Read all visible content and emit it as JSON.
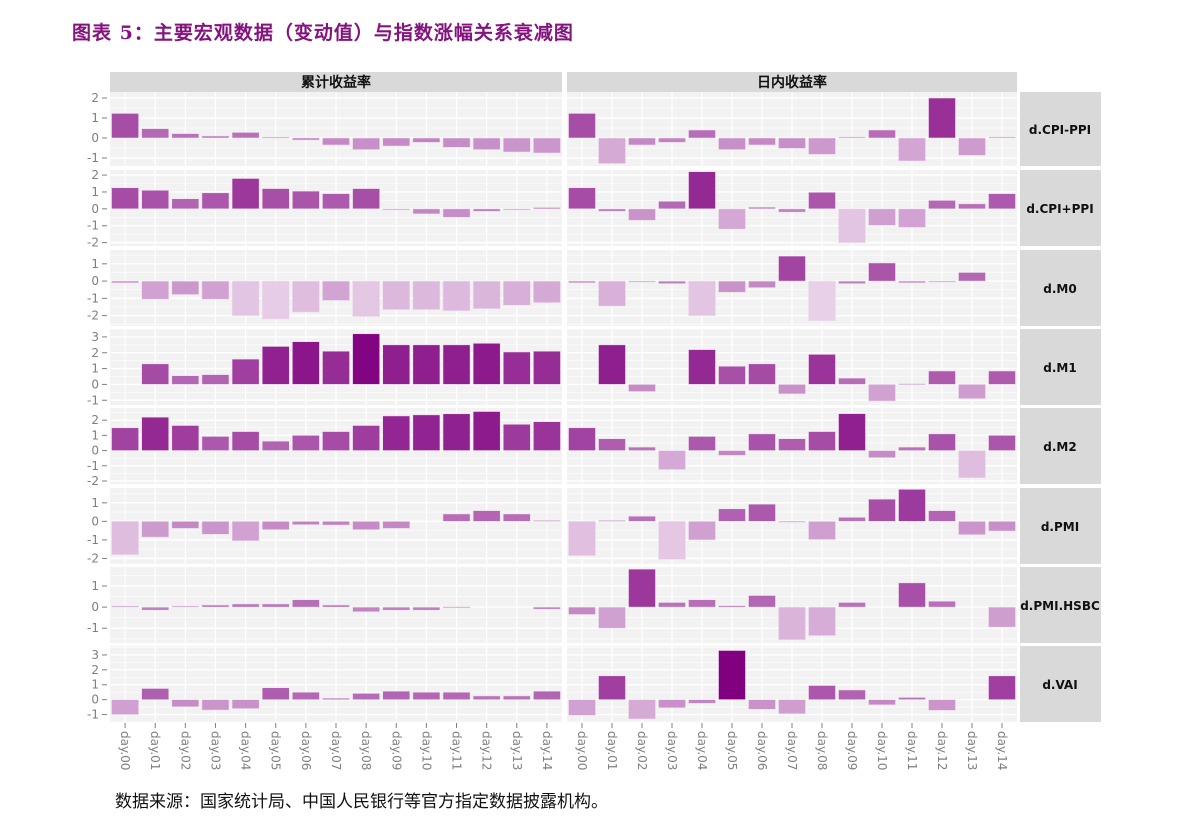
{
  "title": "图表 5：主要宏观数据（变动值）与指数涨幅关系衰减图",
  "source": "数据来源：国家统计局、中国人民银行等官方指定数据披露机构。",
  "colors": {
    "low": "#e8d0e8",
    "high": "#800080",
    "strip": "#d9d9d9",
    "panel": "#f2f2f2",
    "title": "#84127f"
  },
  "chart_data": {
    "type": "bar",
    "title": "主要宏观数据（变动值）与指数涨幅关系衰减图",
    "xlabel": "",
    "ylabel": "",
    "grid": true,
    "columns": [
      "累计收益率",
      "日内收益率"
    ],
    "categories": [
      "day.00",
      "day.01",
      "day.02",
      "day.03",
      "day.04",
      "day.05",
      "day.06",
      "day.07",
      "day.08",
      "day.09",
      "day.10",
      "day.11",
      "day.12",
      "day.13",
      "day.14"
    ],
    "color_range": [
      -2.3,
      3.3
    ],
    "rows": [
      {
        "name": "d.CPI-PPI",
        "ylim": [
          -1.4,
          2.3
        ],
        "ticks": [
          -1,
          0,
          1,
          2
        ],
        "series": [
          [
            1.23,
            0.47,
            0.22,
            0.1,
            0.28,
            0.04,
            -0.1,
            -0.35,
            -0.58,
            -0.4,
            -0.22,
            -0.47,
            -0.58,
            -0.7,
            -0.75
          ],
          [
            1.23,
            -1.28,
            -0.35,
            -0.22,
            0.4,
            -0.58,
            -0.35,
            -0.52,
            -0.82,
            0.05,
            0.4,
            -1.15,
            2.0,
            -0.87,
            0.05
          ]
        ]
      },
      {
        "name": "d.CPI+PPI",
        "ylim": [
          -2.2,
          2.3
        ],
        "ticks": [
          -2,
          -1,
          0,
          1,
          2
        ],
        "series": [
          [
            1.25,
            1.1,
            0.6,
            0.95,
            1.8,
            1.2,
            1.05,
            0.9,
            1.2,
            -0.05,
            -0.3,
            -0.5,
            -0.15,
            -0.05,
            0.08
          ],
          [
            1.25,
            -0.15,
            -0.68,
            0.45,
            2.2,
            -1.2,
            0.1,
            -0.2,
            0.98,
            -2.0,
            -0.98,
            -1.1,
            0.5,
            0.3,
            0.9
          ]
        ]
      },
      {
        "name": "d.M0",
        "ylim": [
          -2.6,
          1.8
        ],
        "ticks": [
          -2,
          -1,
          0,
          1
        ],
        "series": [
          [
            -0.1,
            -1.05,
            -0.78,
            -1.05,
            -2.0,
            -2.2,
            -1.8,
            -1.12,
            -2.05,
            -1.65,
            -1.65,
            -1.72,
            -1.6,
            -1.4,
            -1.25
          ],
          [
            -0.1,
            -1.45,
            -0.05,
            -0.15,
            -2.0,
            -0.65,
            -0.38,
            1.45,
            -2.3,
            -0.15,
            1.05,
            -0.1,
            -0.05,
            0.5,
            0
          ]
        ]
      },
      {
        "name": "d.M1",
        "ylim": [
          -1.3,
          3.5
        ],
        "ticks": [
          -1,
          0,
          1,
          2,
          3
        ],
        "series": [
          [
            0,
            1.3,
            0.55,
            0.62,
            1.6,
            2.4,
            2.7,
            2.1,
            3.2,
            2.5,
            2.5,
            2.5,
            2.6,
            2.05,
            2.1
          ],
          [
            0,
            2.5,
            -0.45,
            0,
            2.2,
            1.15,
            1.3,
            -0.6,
            1.9,
            0.4,
            -1.05,
            0.05,
            0.85,
            -0.9,
            0.85
          ]
        ]
      },
      {
        "name": "d.M2",
        "ylim": [
          -2.2,
          2.8
        ],
        "ticks": [
          -2,
          -1,
          0,
          1,
          2
        ],
        "series": [
          [
            1.5,
            2.2,
            1.65,
            0.93,
            1.25,
            0.62,
            1.0,
            1.25,
            1.65,
            2.28,
            2.35,
            2.42,
            2.57,
            1.73,
            1.9
          ],
          [
            1.5,
            0.78,
            0.23,
            -1.25,
            0.93,
            -0.32,
            1.1,
            0.78,
            1.25,
            2.43,
            -0.47,
            0.23,
            1.1,
            -1.8,
            1.0
          ]
        ]
      },
      {
        "name": "d.PMI",
        "ylim": [
          -2.3,
          1.8
        ],
        "ticks": [
          -2,
          -1,
          0,
          1
        ],
        "series": [
          [
            -1.8,
            -0.85,
            -0.38,
            -0.7,
            -1.05,
            -0.45,
            -0.18,
            -0.2,
            -0.45,
            -0.38,
            0,
            0.4,
            0.58,
            0.4,
            0.05
          ],
          [
            -1.85,
            0.05,
            0.28,
            -2.05,
            -1.0,
            0.68,
            0.93,
            -0.05,
            -0.98,
            0.22,
            1.2,
            1.73,
            0.58,
            -0.72,
            -0.52
          ]
        ]
      },
      {
        "name": "d.PMI.HSBC",
        "ylim": [
          -1.7,
          1.9
        ],
        "ticks": [
          -1,
          0,
          1
        ],
        "series": [
          [
            0.05,
            -0.15,
            0.05,
            0.1,
            0.15,
            0.15,
            0.35,
            0.1,
            -0.22,
            -0.15,
            -0.15,
            0.02,
            0,
            0,
            -0.1
          ],
          [
            -0.35,
            -1.0,
            1.8,
            0.22,
            0.35,
            0.07,
            0.55,
            -1.55,
            -1.35,
            0.22,
            0,
            1.15,
            0.28,
            0,
            -0.95
          ]
        ]
      },
      {
        "name": "d.VAI",
        "ylim": [
          -1.5,
          3.6
        ],
        "ticks": [
          -1,
          0,
          1,
          2,
          3
        ],
        "series": [
          [
            -1.0,
            0.75,
            -0.48,
            -0.7,
            -0.6,
            0.8,
            0.5,
            0.1,
            0.42,
            0.57,
            0.5,
            0.5,
            0.25,
            0.25,
            0.57
          ],
          [
            -1.05,
            1.6,
            -1.3,
            -0.55,
            -0.25,
            3.3,
            -0.65,
            -0.95,
            0.95,
            0.65,
            -0.35,
            0.15,
            -0.72,
            0,
            1.6
          ]
        ]
      }
    ]
  }
}
